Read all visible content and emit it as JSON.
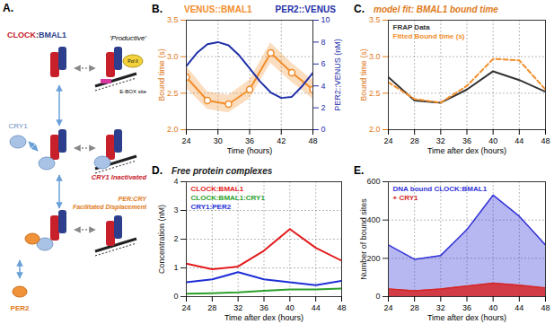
{
  "chart_data": [
    {
      "panel": "B.",
      "type": "line",
      "legend": "top",
      "grid": true,
      "xlabel": "Time (hours)",
      "ylabel": "Bound time (s)",
      "y2label": "PER2::VENUS (nM)",
      "xlim": [
        24,
        48
      ],
      "xticks": [
        24,
        30,
        36,
        42,
        48
      ],
      "ylim": [
        2.0,
        3.5
      ],
      "yticks": [
        {
          "value": 2.0,
          "label": "2.0"
        },
        {
          "value": 2.5,
          "label": "2.5"
        },
        {
          "value": 3.0,
          "label": "3.0"
        },
        {
          "value": 3.5,
          "label": "3.5"
        }
      ],
      "y2lim": [
        0,
        10
      ],
      "y2ticks": [
        0,
        2,
        4,
        6,
        8,
        10
      ],
      "series": [
        {
          "name": "VENUS::BMAL1",
          "color": "#f28e2b",
          "marker": "circle",
          "x": [
            24,
            28,
            32,
            36,
            40,
            44,
            48
          ],
          "values": [
            2.72,
            2.4,
            2.35,
            2.55,
            3.05,
            2.78,
            2.55
          ],
          "error": [
            0.15,
            0.12,
            0.12,
            0.13,
            0.14,
            0.13,
            0.13
          ]
        },
        {
          "name": "PER2::VENUS",
          "color": "#1f2fa8",
          "axis": "y2",
          "x": [
            24,
            26,
            28,
            30,
            32,
            34,
            36,
            38,
            40,
            42,
            44,
            46,
            48
          ],
          "values": [
            5.8,
            7.0,
            7.8,
            8.0,
            7.7,
            6.8,
            5.6,
            4.4,
            3.4,
            2.9,
            3.0,
            4.0,
            5.2
          ]
        }
      ]
    },
    {
      "panel": "C.",
      "type": "line",
      "title": "model fit: BMAL1 bound time",
      "legend": "top-left",
      "grid": true,
      "xlabel": "Time after dex (hours)",
      "ylabel": "Bound time (s)",
      "xlim": [
        24,
        48
      ],
      "xticks": [
        24,
        28,
        32,
        36,
        40,
        44,
        48
      ],
      "ylim": [
        2.0,
        3.5
      ],
      "yticks": [
        {
          "value": 2.0,
          "label": "2.0"
        },
        {
          "value": 2.5,
          "label": "2.5"
        },
        {
          "value": 3.0,
          "label": "3.0"
        },
        {
          "value": 3.5,
          "label": "3.5"
        }
      ],
      "series": [
        {
          "name": "FRAP Data",
          "color": "#333333",
          "x": [
            24,
            28,
            32,
            36,
            40,
            44,
            48
          ],
          "values": [
            2.72,
            2.4,
            2.37,
            2.55,
            2.8,
            2.68,
            2.52
          ]
        },
        {
          "name": "Fitted Bound time (s)",
          "color": "#f28e2b",
          "line_style": "dashed",
          "x": [
            24,
            28,
            32,
            36,
            40,
            44,
            48
          ],
          "values": [
            2.65,
            2.42,
            2.37,
            2.6,
            2.97,
            2.95,
            2.55
          ]
        }
      ]
    },
    {
      "panel": "D.",
      "type": "line",
      "title": "Free protein complexes",
      "legend": "top-left",
      "grid": true,
      "xlabel": "Time after dex (hours)",
      "ylabel": "Concentration (nM)",
      "xlim": [
        24,
        48
      ],
      "xticks": [
        24,
        28,
        32,
        36,
        40,
        44,
        48
      ],
      "ylim": [
        0,
        4
      ],
      "yticks": [
        0,
        1,
        2,
        3,
        4
      ],
      "series": [
        {
          "name": "CLOCK:BMAL1",
          "color": "#e41a1c",
          "x": [
            24,
            28,
            32,
            36,
            40,
            44,
            48
          ],
          "values": [
            1.15,
            0.95,
            1.05,
            1.6,
            2.35,
            1.7,
            1.25
          ]
        },
        {
          "name": "CLOCK:BMAL1:CRY1",
          "color": "#2ca02c",
          "x": [
            24,
            28,
            32,
            36,
            40,
            44,
            48
          ],
          "values": [
            0.1,
            0.12,
            0.15,
            0.2,
            0.25,
            0.25,
            0.28
          ]
        },
        {
          "name": "CRY1:PER2",
          "color": "#1f2fd6",
          "x": [
            24,
            28,
            32,
            36,
            40,
            44,
            48
          ],
          "values": [
            0.5,
            0.6,
            0.85,
            0.6,
            0.5,
            0.4,
            0.55
          ]
        }
      ]
    },
    {
      "panel": "E.",
      "type": "area",
      "legend": "top-left",
      "grid": true,
      "xlabel": "Time after dex (hours)",
      "ylabel": "Number of bound sites",
      "xlim": [
        24,
        48
      ],
      "xticks": [
        24,
        28,
        32,
        36,
        40,
        44,
        48
      ],
      "ylim": [
        0,
        600
      ],
      "yticks": [
        0,
        200,
        400,
        600
      ],
      "series": [
        {
          "name": "DNA bound CLOCK:BMAL1",
          "color": "#3232d8",
          "x": [
            24,
            28,
            32,
            36,
            40,
            44,
            48
          ],
          "values": [
            270,
            195,
            215,
            350,
            530,
            420,
            270
          ]
        },
        {
          "name": "+ CRY1",
          "color": "#d62728",
          "x": [
            24,
            28,
            32,
            36,
            40,
            44,
            48
          ],
          "values": [
            40,
            30,
            40,
            55,
            70,
            60,
            45
          ]
        }
      ]
    }
  ],
  "diagram": {
    "panel": "A.",
    "complex_clock": "CLOCK",
    "complex_sep": ":",
    "complex_bmal": "BMAL1",
    "productive": "'Productive'",
    "pol": "Pol II",
    "ebox": "E-BOX site",
    "cry1": "CRY1",
    "cry1_state": "CRY1 Inactivated",
    "per_cry": [
      "PER:CRY",
      "Facilitated Displacement"
    ],
    "per2": "PER2"
  }
}
